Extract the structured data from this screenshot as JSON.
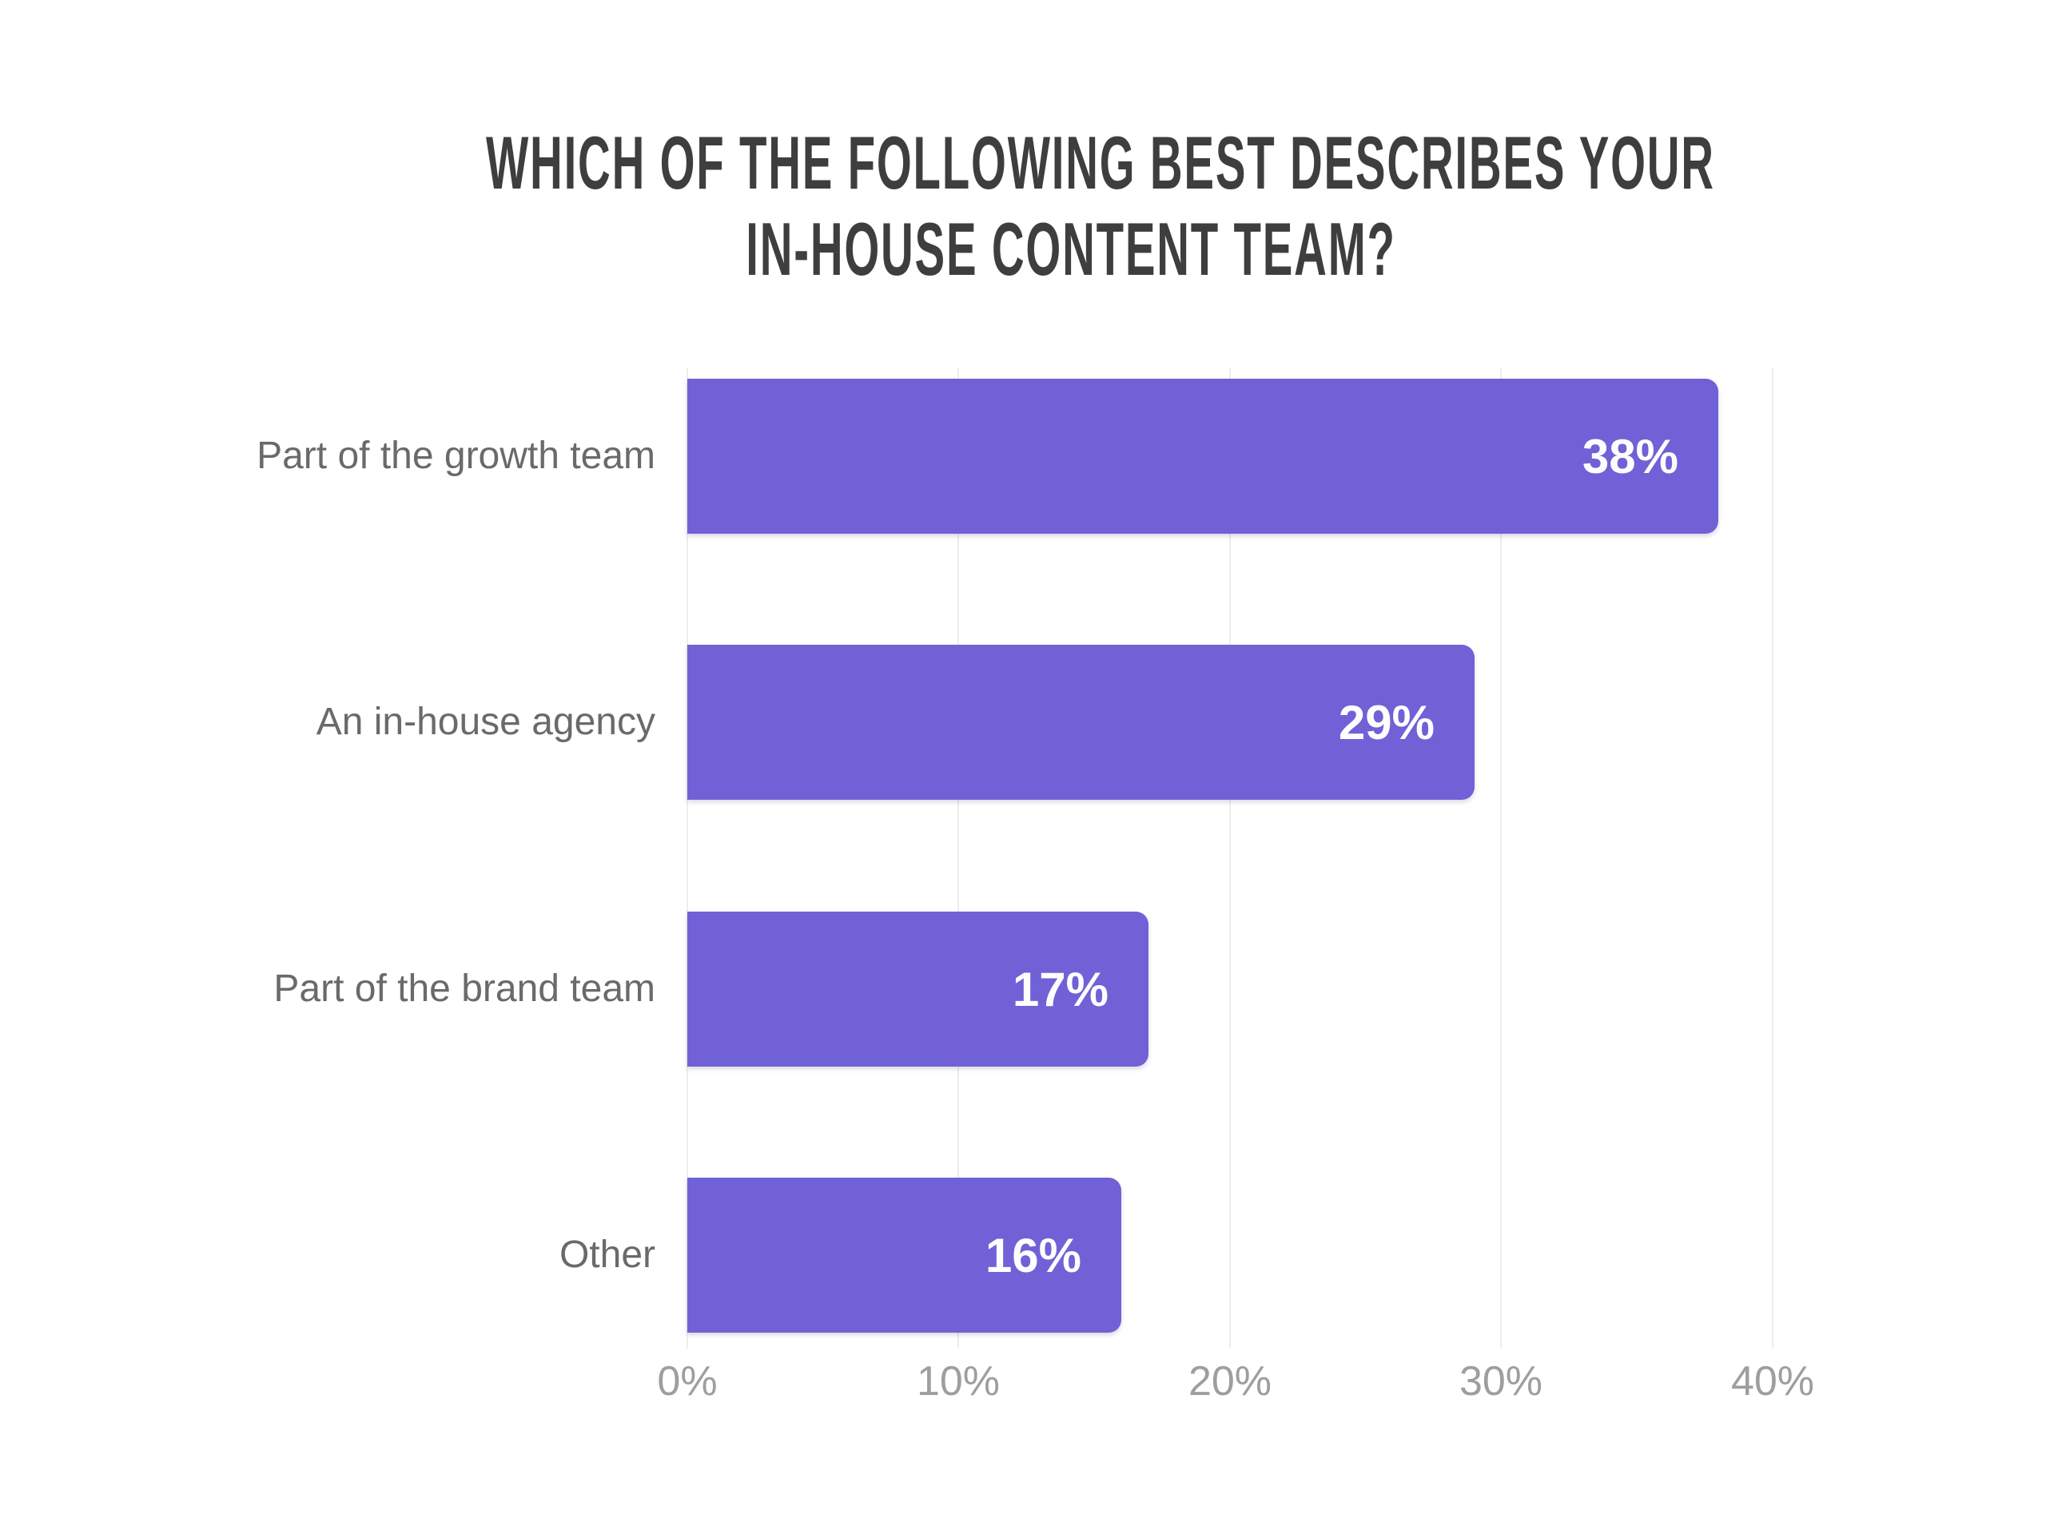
{
  "title": {
    "line1": "WHICH OF THE FOLLOWING BEST DESCRIBES YOUR",
    "line2": "IN-HOUSE CONTENT TEAM?"
  },
  "chart_data": {
    "type": "bar",
    "orientation": "horizontal",
    "title": "WHICH OF THE FOLLOWING BEST DESCRIBES YOUR IN-HOUSE CONTENT TEAM?",
    "categories": [
      "Part of the growth team",
      "An in-house agency",
      "Part of the brand team",
      "Other"
    ],
    "values": [
      38,
      29,
      17,
      16
    ],
    "value_labels": [
      "38%",
      "29%",
      "17%",
      "16%"
    ],
    "x_tick_labels": [
      "0%",
      "10%",
      "20%",
      "30%",
      "40%"
    ],
    "x_tick_values": [
      0,
      10,
      20,
      30,
      40
    ],
    "xlim": [
      0,
      43.3
    ],
    "xlabel": "",
    "ylabel": "",
    "grid": "vertical-only",
    "legend": "none",
    "bar_color": "#7161d6",
    "value_label_color": "#fdfdfd",
    "category_label_color": "#6a6a6a",
    "tick_label_color": "#9e9e9e",
    "title_color": "#3e3e3e",
    "gridline_color": "#ededed",
    "background_color": "#ffffff"
  }
}
